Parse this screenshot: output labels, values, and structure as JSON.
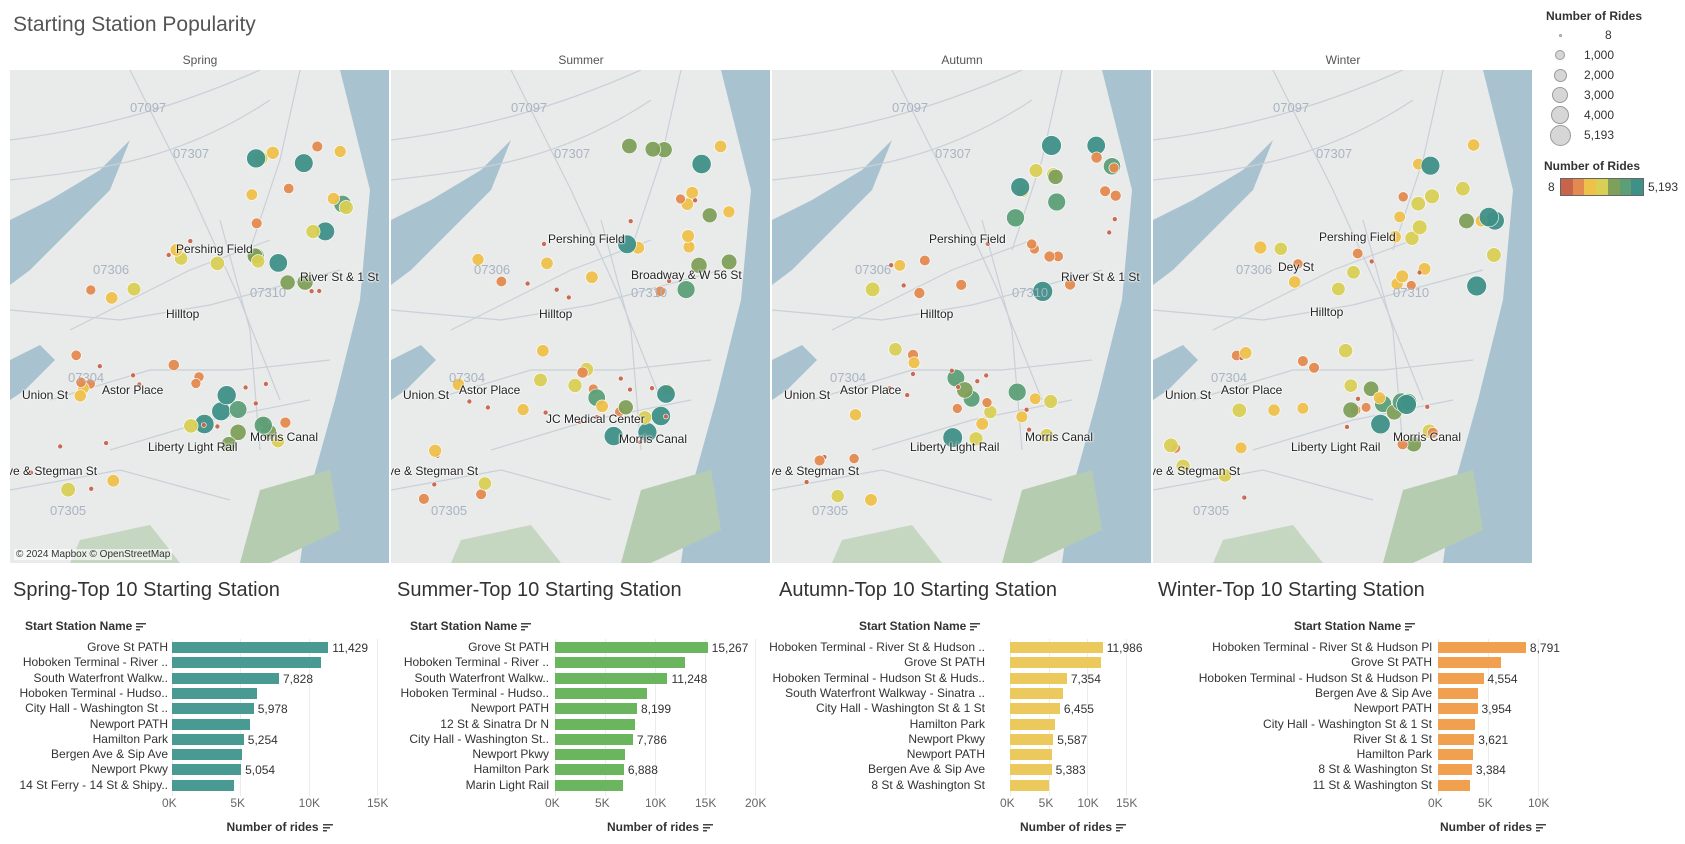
{
  "title": "Starting Station Popularity",
  "attribution": "© 2024 Mapbox © OpenStreetMap",
  "icons": {
    "sort": "sort-descending-icon"
  },
  "legend": {
    "size_title": "Number of Rides",
    "size_items": [
      "8",
      "1,000",
      "2,000",
      "3,000",
      "4,000",
      "5,193"
    ],
    "color_title": "Number of Rides",
    "color_min": "8",
    "color_max": "5,193",
    "color_ramp": [
      "#c8644b",
      "#e38a4f",
      "#eec14b",
      "#d9cf55",
      "#7fa05a",
      "#5c9f77",
      "#3f9088"
    ]
  },
  "maps": [
    {
      "season": "Spring",
      "labels": [
        "Pershing Field",
        "River St & 1 St",
        "Hilltop",
        "Astor Place",
        "Union St",
        "Morris Canal",
        "Liberty Light Rail",
        "ve & Stegman St"
      ],
      "zips": [
        "07097",
        "07307",
        "07306",
        "07310",
        "07304",
        "07305"
      ]
    },
    {
      "season": "Summer",
      "labels": [
        "Pershing Field",
        "Broadway & W 56 St",
        "Hilltop",
        "Astor Place",
        "Union St",
        "JC Medical Center",
        "Morris Canal",
        "ve & Stegman St"
      ],
      "zips": [
        "07097",
        "07307",
        "07306",
        "07310",
        "07304",
        "07305"
      ]
    },
    {
      "season": "Autumn",
      "labels": [
        "Pershing Field",
        "River St & 1 St",
        "Hilltop",
        "Astor Place",
        "Union St",
        "Morris Canal",
        "Liberty Light Rail",
        "ve & Stegman St"
      ],
      "zips": [
        "07097",
        "07307",
        "07306",
        "07310",
        "07304",
        "07305"
      ]
    },
    {
      "season": "Winter",
      "labels": [
        "Pershing Field",
        "Dey St",
        "Hilltop",
        "Astor Place",
        "Union St",
        "Morris Canal",
        "Liberty Light Rail",
        "ve & Stegman St"
      ],
      "zips": [
        "07097",
        "07307",
        "07306",
        "07310",
        "07304",
        "07305"
      ]
    }
  ],
  "chart_data": [
    {
      "type": "bar",
      "title": "Spring-Top 10 Starting Station",
      "ylabel": "Start Station Name",
      "xlabel": "Number of rides",
      "color": "#4a9a94",
      "xlim": [
        0,
        15000
      ],
      "ticks": [
        "0K",
        "5K",
        "10K",
        "15K"
      ],
      "tick_values": [
        0,
        5000,
        10000,
        15000
      ],
      "categories": [
        "Grove St PATH",
        "Hoboken Terminal - River ..",
        "South Waterfront Walkw..",
        "Hoboken Terminal - Hudso..",
        "City Hall - Washington St ..",
        "Newport PATH",
        "Hamilton Park",
        "Bergen Ave & Sip Ave",
        "Newport Pkwy",
        "14 St Ferry - 14 St & Shipy.."
      ],
      "values": [
        11429,
        10900,
        7828,
        6200,
        5978,
        5700,
        5254,
        5100,
        5054,
        4500
      ],
      "value_labels": [
        "11,429",
        "",
        "7,828",
        "",
        "5,978",
        "",
        "5,254",
        "",
        "5,054",
        ""
      ]
    },
    {
      "type": "bar",
      "title": "Summer-Top 10 Starting Station",
      "ylabel": "Start Station Name",
      "xlabel": "Number of rides",
      "color": "#6bb55f",
      "xlim": [
        0,
        20000
      ],
      "ticks": [
        "0K",
        "5K",
        "10K",
        "15K",
        "20K"
      ],
      "tick_values": [
        0,
        5000,
        10000,
        15000,
        20000
      ],
      "categories": [
        "Grove St PATH",
        "Hoboken Terminal - River ..",
        "South Waterfront Walkw..",
        "Hoboken Terminal - Hudso..",
        "Newport PATH",
        "12 St & Sinatra Dr N",
        "City Hall - Washington St..",
        "Newport Pkwy",
        "Hamilton Park",
        "Marin Light Rail"
      ],
      "values": [
        15267,
        13000,
        11248,
        9200,
        8199,
        8000,
        7786,
        7000,
        6888,
        6800
      ],
      "value_labels": [
        "15,267",
        "",
        "11,248",
        "",
        "8,199",
        "",
        "7,786",
        "",
        "6,888",
        ""
      ]
    },
    {
      "type": "bar",
      "title": "Autumn-Top 10 Starting Station",
      "ylabel": "Start Station Name",
      "xlabel": "Number of rides",
      "color": "#ecc95c",
      "xlim": [
        0,
        15000
      ],
      "ticks": [
        "0K",
        "5K",
        "10K",
        "15K"
      ],
      "tick_values": [
        0,
        5000,
        10000,
        15000
      ],
      "categories": [
        "Hoboken Terminal - River St & Hudson ..",
        "Grove St PATH",
        "Hoboken Terminal - Hudson St & Huds..",
        "South Waterfront Walkway - Sinatra ..",
        "City Hall - Washington St & 1 St",
        "Hamilton Park",
        "Newport Pkwy",
        "Newport PATH",
        "Bergen Ave & Sip Ave",
        "8 St & Washington St"
      ],
      "values": [
        11986,
        11800,
        7354,
        6800,
        6455,
        5800,
        5587,
        5400,
        5383,
        5000
      ],
      "value_labels": [
        "11,986",
        "",
        "7,354",
        "",
        "6,455",
        "",
        "5,587",
        "",
        "5,383",
        ""
      ]
    },
    {
      "type": "bar",
      "title": "Winter-Top 10 Starting Station",
      "ylabel": "Start Station Name",
      "xlabel": "Number of rides",
      "color": "#f0a04e",
      "xlim": [
        0,
        10000
      ],
      "ticks": [
        "0K",
        "5K",
        "10K"
      ],
      "tick_values": [
        0,
        5000,
        10000
      ],
      "categories": [
        "Hoboken Terminal - River St & Hudson Pl",
        "Grove St PATH",
        "Hoboken Terminal - Hudson St & Hudson Pl",
        "Bergen Ave & Sip Ave",
        "Newport PATH",
        "City Hall - Washington St & 1 St",
        "River St & 1 St",
        "Hamilton Park",
        "8 St & Washington St",
        "11 St & Washington St"
      ],
      "values": [
        8791,
        6300,
        4554,
        4000,
        3954,
        3700,
        3621,
        3500,
        3384,
        3200
      ],
      "value_labels": [
        "8,791",
        "",
        "4,554",
        "",
        "3,954",
        "",
        "3,621",
        "",
        "3,384",
        ""
      ]
    }
  ]
}
